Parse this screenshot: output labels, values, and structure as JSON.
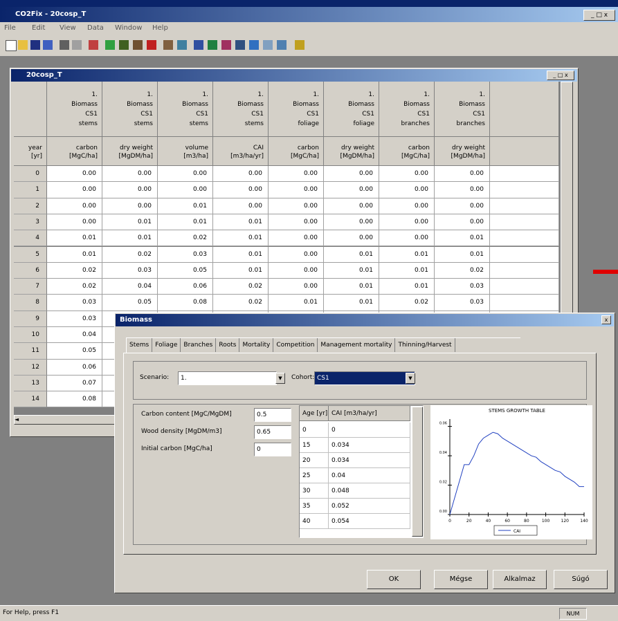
{
  "window": {
    "title": "CO2Fix - 20cosp_T",
    "menu": [
      "File",
      "Edit",
      "View",
      "Data",
      "Window",
      "Help"
    ]
  },
  "document_window": {
    "title": "20cosp_T",
    "table": {
      "corner": [
        "year",
        "[yr]"
      ],
      "columns": [
        {
          "header": [
            "1.",
            "Biomass",
            "CS1",
            "stems"
          ],
          "subheader": [
            "carbon",
            "[MgC/ha]"
          ]
        },
        {
          "header": [
            "1.",
            "Biomass",
            "CS1",
            "stems"
          ],
          "subheader": [
            "dry weight",
            "[MgDM/ha]"
          ]
        },
        {
          "header": [
            "1.",
            "Biomass",
            "CS1",
            "stems"
          ],
          "subheader": [
            "volume",
            "[m3/ha]"
          ]
        },
        {
          "header": [
            "1.",
            "Biomass",
            "CS1",
            "stems"
          ],
          "subheader": [
            "CAI",
            "[m3/ha/yr]"
          ]
        },
        {
          "header": [
            "1.",
            "Biomass",
            "CS1",
            "foliage"
          ],
          "subheader": [
            "carbon",
            "[MgC/ha]"
          ]
        },
        {
          "header": [
            "1.",
            "Biomass",
            "CS1",
            "foliage"
          ],
          "subheader": [
            "dry weight",
            "[MgDM/ha]"
          ]
        },
        {
          "header": [
            "1.",
            "Biomass",
            "CS1",
            "branches"
          ],
          "subheader": [
            "carbon",
            "[MgC/ha]"
          ]
        },
        {
          "header": [
            "1.",
            "Biomass",
            "CS1",
            "branches"
          ],
          "subheader": [
            "dry weight",
            "[MgDM/ha]"
          ]
        }
      ],
      "rows": [
        {
          "year": "0",
          "values": [
            "0.00",
            "0.00",
            "0.00",
            "0.00",
            "0.00",
            "0.00",
            "0.00",
            "0.00"
          ]
        },
        {
          "year": "1",
          "values": [
            "0.00",
            "0.00",
            "0.00",
            "0.00",
            "0.00",
            "0.00",
            "0.00",
            "0.00"
          ]
        },
        {
          "year": "2",
          "values": [
            "0.00",
            "0.00",
            "0.01",
            "0.00",
            "0.00",
            "0.00",
            "0.00",
            "0.00"
          ]
        },
        {
          "year": "3",
          "values": [
            "0.00",
            "0.01",
            "0.01",
            "0.01",
            "0.00",
            "0.00",
            "0.00",
            "0.00"
          ]
        },
        {
          "year": "4",
          "values": [
            "0.01",
            "0.01",
            "0.02",
            "0.01",
            "0.00",
            "0.00",
            "0.00",
            "0.01"
          ]
        },
        {
          "year": "5",
          "values": [
            "0.01",
            "0.02",
            "0.03",
            "0.01",
            "0.00",
            "0.01",
            "0.01",
            "0.01"
          ]
        },
        {
          "year": "6",
          "values": [
            "0.02",
            "0.03",
            "0.05",
            "0.01",
            "0.00",
            "0.01",
            "0.01",
            "0.02"
          ]
        },
        {
          "year": "7",
          "values": [
            "0.02",
            "0.04",
            "0.06",
            "0.02",
            "0.00",
            "0.01",
            "0.01",
            "0.03"
          ]
        },
        {
          "year": "8",
          "values": [
            "0.03",
            "0.05",
            "0.08",
            "0.02",
            "0.01",
            "0.01",
            "0.02",
            "0.03"
          ]
        },
        {
          "year": "9",
          "values": [
            "0.03"
          ]
        },
        {
          "year": "10",
          "values": [
            "0.04"
          ]
        },
        {
          "year": "11",
          "values": [
            "0.05"
          ]
        },
        {
          "year": "12",
          "values": [
            "0.06"
          ]
        },
        {
          "year": "13",
          "values": [
            "0.07"
          ]
        },
        {
          "year": "14",
          "values": [
            "0.08"
          ]
        }
      ]
    }
  },
  "dialog": {
    "title": "Biomass",
    "tabs": [
      "Stems",
      "Foliage",
      "Branches",
      "Roots",
      "Mortality",
      "Competition",
      "Management mortality",
      "Thinning/Harvest"
    ],
    "scenario_label": "Scenario:",
    "scenario": "1.",
    "cohort_label": "Cohort:",
    "cohort": "CS1",
    "fields": [
      {
        "label": "Carbon content [MgC/MgDM]",
        "value": "0.5"
      },
      {
        "label": "Wood density [MgDM/m3]",
        "value": "0.65"
      },
      {
        "label": "Initial carbon [MgC/ha]",
        "value": "0"
      }
    ],
    "age_table": {
      "headers": [
        "Age [yr]",
        "CAI [m3/ha/yr]"
      ],
      "rows": [
        [
          "0",
          "0"
        ],
        [
          "15",
          "0.034"
        ],
        [
          "20",
          "0.034"
        ],
        [
          "25",
          "0.04"
        ],
        [
          "30",
          "0.048"
        ],
        [
          "35",
          "0.052"
        ],
        [
          "40",
          "0.054"
        ]
      ]
    },
    "buttons": [
      "OK",
      "Mégse",
      "Alkalmaz",
      "Súgó"
    ]
  },
  "chart_data": {
    "type": "line",
    "title": "STEMS GROWTH TABLE",
    "x": [
      0,
      15,
      20,
      25,
      30,
      35,
      40,
      45,
      50,
      55,
      60,
      65,
      70,
      75,
      80,
      85,
      90,
      95,
      100,
      105,
      110,
      115,
      120,
      125,
      130,
      135,
      140
    ],
    "series": [
      {
        "name": "CAI",
        "color": "#2040c0",
        "values": [
          0,
          0.034,
          0.034,
          0.04,
          0.048,
          0.052,
          0.054,
          0.056,
          0.055,
          0.052,
          0.05,
          0.048,
          0.046,
          0.044,
          0.042,
          0.04,
          0.039,
          0.036,
          0.034,
          0.032,
          0.03,
          0.029,
          0.026,
          0.024,
          0.022,
          0.019,
          0.019
        ]
      }
    ],
    "xlim": [
      0,
      140
    ],
    "xticks": [
      0,
      20,
      40,
      60,
      80,
      100,
      120,
      140
    ],
    "ylim": [
      0,
      0.065
    ],
    "yticks": [
      {
        "value": 0,
        "label": "0.00"
      },
      0.02,
      0.04,
      0.06
    ]
  },
  "status_bar": {
    "text": "For Help, press F1",
    "indicator": "NUM"
  }
}
